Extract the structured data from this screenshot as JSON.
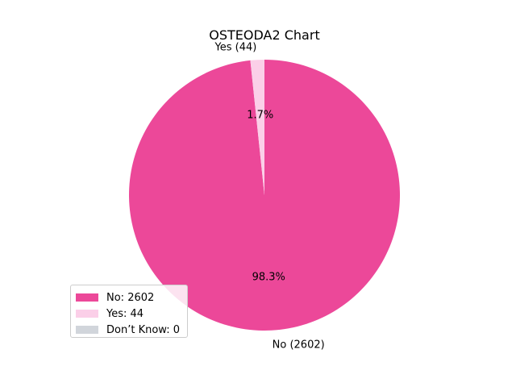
{
  "chart_data": {
    "type": "pie",
    "title": "OSTEODA2 Chart",
    "categories": [
      "No",
      "Yes",
      "Don’t Know"
    ],
    "values": [
      2602,
      44,
      0
    ],
    "colors": [
      "#ec4899",
      "#fbcfe8",
      "#d1d5db"
    ],
    "slice_labels": [
      "No (2602)",
      "Yes (44)",
      ""
    ],
    "percent_labels": [
      "98.3%",
      "1.7%",
      ""
    ],
    "start_angle_deg": 90,
    "direction": "clockwise",
    "legend": {
      "placement": "lower-left",
      "entries": [
        "No: 2602",
        "Yes: 44",
        "Don’t Know: 0"
      ]
    }
  }
}
